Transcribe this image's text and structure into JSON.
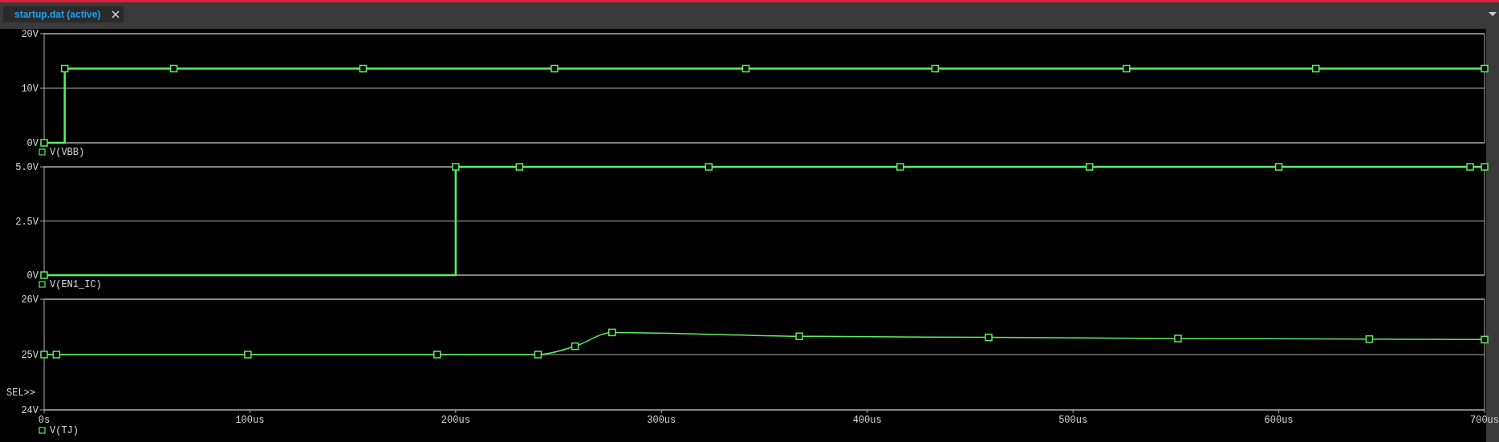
{
  "chart_data": [
    {
      "type": "step",
      "title": "startup.dat (active)",
      "x": [
        0,
        10,
        63,
        155,
        248,
        341,
        433,
        526,
        618,
        700
      ],
      "series": [
        {
          "name": "V(VBB)",
          "color": "#5cf05c",
          "values": [
            0,
            13.6,
            13.6,
            13.6,
            13.6,
            13.6,
            13.6,
            13.6,
            13.6,
            13.6
          ]
        }
      ],
      "xlim": [
        0,
        700
      ],
      "ylim": [
        0,
        20
      ],
      "yticks": [
        {
          "value": 0,
          "label": "0V"
        },
        {
          "value": 10,
          "label": "10V"
        },
        {
          "value": 20,
          "label": "20V"
        }
      ],
      "grid": "y",
      "legend": "bottom left",
      "marker": "square",
      "tick_labels": "y"
    },
    {
      "type": "step",
      "x": [
        0,
        200,
        231,
        323,
        416,
        508,
        600,
        693,
        700
      ],
      "series": [
        {
          "name": "V(EN1_IC)",
          "color": "#5cf05c",
          "values": [
            0,
            5,
            5,
            5,
            5,
            5,
            5,
            5,
            5
          ]
        }
      ],
      "xlim": [
        0,
        700
      ],
      "ylim": [
        0,
        5
      ],
      "yticks": [
        {
          "value": 0,
          "label": "0V"
        },
        {
          "value": 2.5,
          "label": "2.5V"
        },
        {
          "value": 5,
          "label": "5.0V"
        }
      ],
      "grid": "y",
      "legend": "bottom left",
      "marker": "square",
      "tick_labels": "y"
    },
    {
      "type": "line",
      "x": [
        0,
        6,
        99,
        191,
        240,
        258,
        276,
        367,
        459,
        551,
        644,
        700
      ],
      "series": [
        {
          "name": "V(TJ)",
          "color": "#5cf05c",
          "values": [
            25,
            25,
            25,
            25,
            25,
            25.15,
            25.4,
            25.33,
            25.31,
            25.29,
            25.28,
            25.27
          ]
        }
      ],
      "xlim": [
        0,
        700
      ],
      "ylim": [
        24,
        26
      ],
      "xticks": [
        {
          "value": 0,
          "label": "0s"
        },
        {
          "value": 100,
          "label": "100us"
        },
        {
          "value": 200,
          "label": "200us"
        },
        {
          "value": 300,
          "label": "300us"
        },
        {
          "value": 400,
          "label": "400us"
        },
        {
          "value": 500,
          "label": "500us"
        },
        {
          "value": 600,
          "label": "600us"
        },
        {
          "value": 700,
          "label": "700us"
        }
      ],
      "yticks": [
        {
          "value": 24,
          "label": "24V"
        },
        {
          "value": 25,
          "label": "25V"
        },
        {
          "value": 26,
          "label": "26V"
        }
      ],
      "grid": "y",
      "legend": "bottom left",
      "marker": "square",
      "annotations": [
        "SEL>>"
      ]
    }
  ]
}
